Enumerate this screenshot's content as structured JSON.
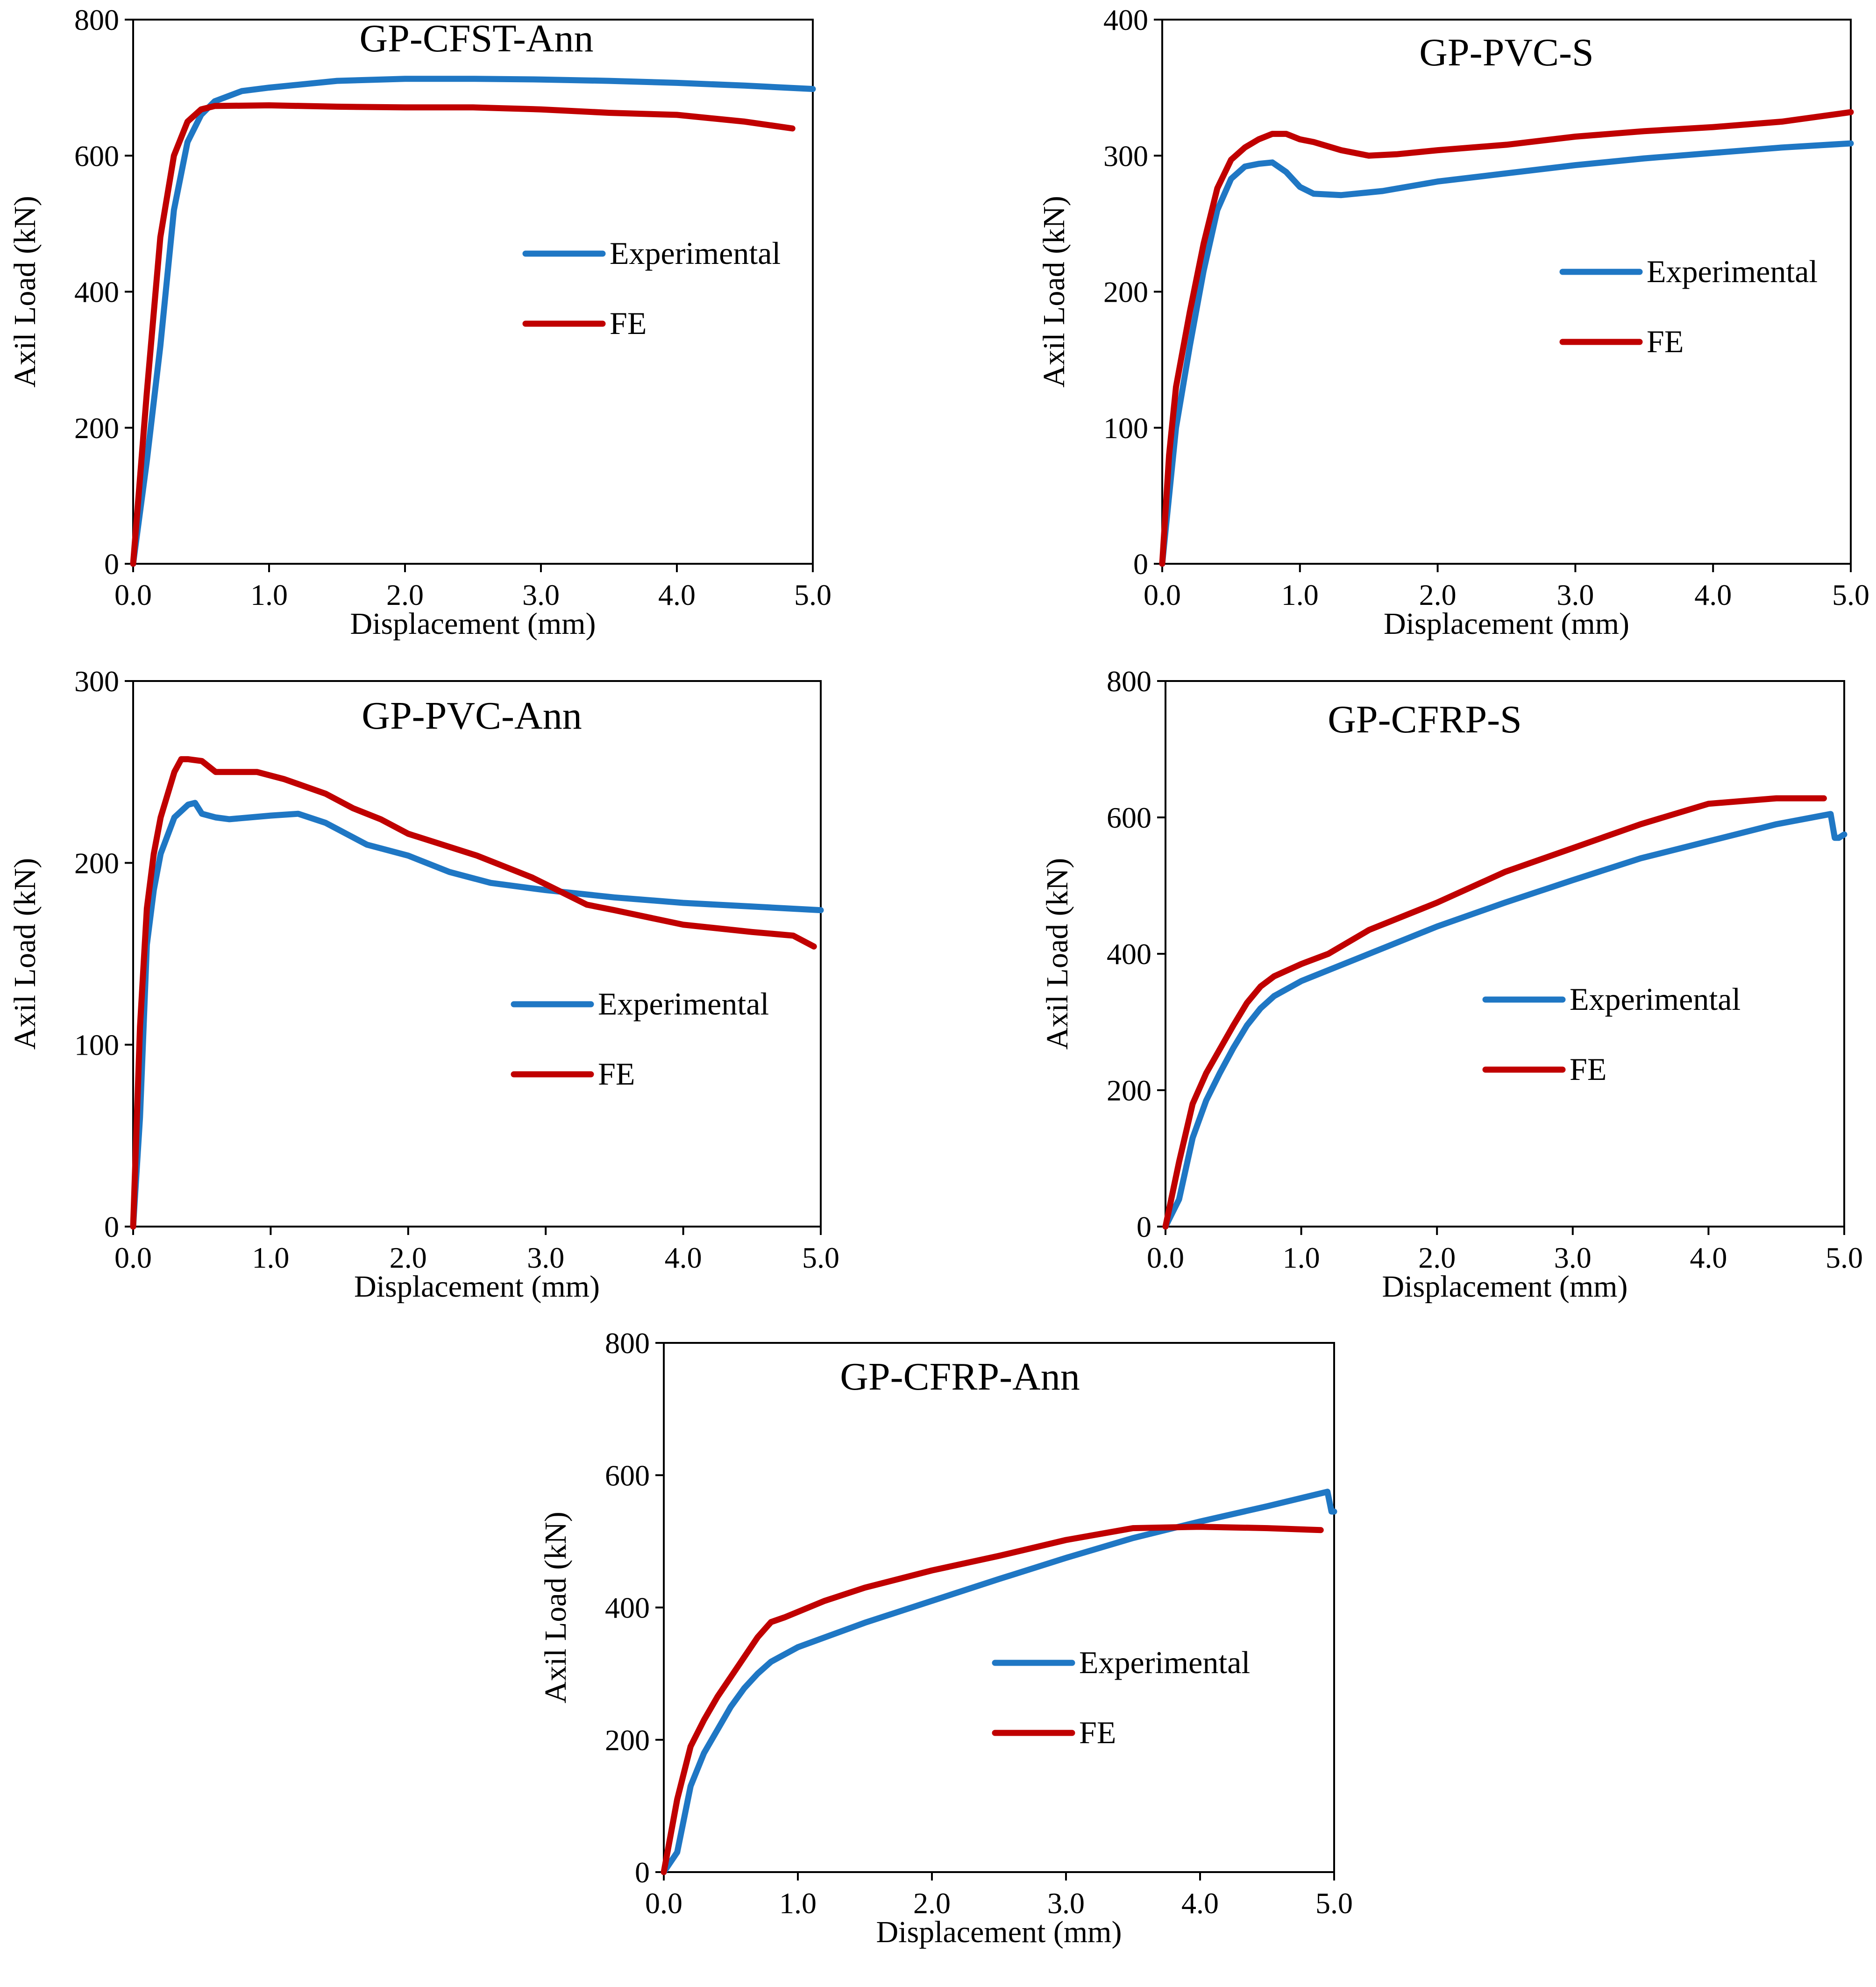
{
  "colors": {
    "experimental": "#1f77c4",
    "fe": "#c00000"
  },
  "chart_data": [
    {
      "type": "line",
      "title": "GP-CFST-Ann",
      "xlabel": "Displacement  (mm)",
      "ylabel": "Axil Load (kN)",
      "xlim": [
        0,
        5
      ],
      "ylim": [
        0,
        800
      ],
      "xticks": [
        0,
        1,
        2,
        3,
        4,
        5
      ],
      "xtick_labels": [
        "0.0",
        "1.0",
        "2.0",
        "3.0",
        "4.0",
        "5.0"
      ],
      "yticks": [
        0,
        200,
        400,
        600,
        800
      ],
      "ytick_labels": [
        "0",
        "200",
        "400",
        "600",
        "800"
      ],
      "legend": [
        "Experimental",
        "FE"
      ],
      "legend_position": "center-right",
      "series": [
        {
          "name": "Experimental",
          "color": "#1f77c4",
          "x": [
            0,
            0.1,
            0.2,
            0.3,
            0.4,
            0.5,
            0.6,
            0.8,
            1.0,
            1.5,
            2.0,
            2.5,
            3.0,
            3.5,
            4.0,
            4.5,
            5.0
          ],
          "y": [
            0,
            150,
            320,
            520,
            620,
            660,
            680,
            695,
            700,
            710,
            713,
            713,
            712,
            710,
            707,
            703,
            698
          ]
        },
        {
          "name": "FE",
          "color": "#c00000",
          "x": [
            0,
            0.1,
            0.2,
            0.3,
            0.4,
            0.5,
            0.6,
            1.0,
            1.5,
            2.0,
            2.5,
            3.0,
            3.5,
            4.0,
            4.5,
            4.85
          ],
          "y": [
            0,
            250,
            480,
            600,
            650,
            668,
            673,
            674,
            672,
            671,
            671,
            668,
            663,
            660,
            650,
            640
          ]
        }
      ]
    },
    {
      "type": "line",
      "title": "GP-PVC-S",
      "xlabel": "Displacement  (mm)",
      "ylabel": "Axil Load (kN)",
      "xlim": [
        0,
        5
      ],
      "ylim": [
        0,
        400
      ],
      "xticks": [
        0,
        1,
        2,
        3,
        4,
        5
      ],
      "xtick_labels": [
        "0.0",
        "1.0",
        "2.0",
        "3.0",
        "4.0",
        "5.0"
      ],
      "yticks": [
        0,
        100,
        200,
        300,
        400
      ],
      "ytick_labels": [
        "0",
        "100",
        "200",
        "300",
        "400"
      ],
      "legend": [
        "Experimental",
        "FE"
      ],
      "legend_position": "center-right",
      "series": [
        {
          "name": "Experimental",
          "color": "#1f77c4",
          "x": [
            0,
            0.1,
            0.2,
            0.3,
            0.4,
            0.5,
            0.6,
            0.7,
            0.8,
            0.9,
            1.0,
            1.1,
            1.3,
            1.6,
            2.0,
            2.5,
            3.0,
            3.5,
            4.0,
            4.5,
            5.0
          ],
          "y": [
            0,
            100,
            160,
            215,
            260,
            283,
            292,
            294,
            295,
            288,
            277,
            272,
            271,
            274,
            281,
            287,
            293,
            298,
            302,
            306,
            309
          ]
        },
        {
          "name": "FE",
          "color": "#c00000",
          "x": [
            0,
            0.05,
            0.1,
            0.2,
            0.3,
            0.4,
            0.5,
            0.6,
            0.7,
            0.8,
            0.9,
            1.0,
            1.1,
            1.3,
            1.5,
            1.7,
            2.0,
            2.5,
            3.0,
            3.5,
            4.0,
            4.5,
            5.0
          ],
          "y": [
            0,
            80,
            130,
            185,
            235,
            276,
            297,
            306,
            312,
            316,
            316,
            312,
            310,
            304,
            300,
            301,
            304,
            308,
            314,
            318,
            321,
            325,
            332
          ]
        }
      ]
    },
    {
      "type": "line",
      "title": "GP-PVC-Ann",
      "xlabel": "Displacement  (mm)",
      "ylabel": "Axil Load (kN)",
      "xlim": [
        0,
        5
      ],
      "ylim": [
        0,
        300
      ],
      "xticks": [
        0,
        1,
        2,
        3,
        4,
        5
      ],
      "xtick_labels": [
        "0.0",
        "1.0",
        "2.0",
        "3.0",
        "4.0",
        "5.0"
      ],
      "yticks": [
        0,
        100,
        200,
        300
      ],
      "ytick_labels": [
        "0",
        "100",
        "200",
        "300"
      ],
      "legend": [
        "Experimental",
        "FE"
      ],
      "legend_position": "center-right",
      "series": [
        {
          "name": "Experimental",
          "color": "#1f77c4",
          "x": [
            0,
            0.05,
            0.1,
            0.15,
            0.2,
            0.3,
            0.4,
            0.45,
            0.5,
            0.6,
            0.7,
            1.0,
            1.2,
            1.4,
            1.5,
            1.7,
            2.0,
            2.3,
            2.6,
            3.0,
            3.5,
            4.0,
            4.5,
            5.0
          ],
          "y": [
            0,
            60,
            155,
            185,
            205,
            225,
            232,
            233,
            227,
            225,
            224,
            226,
            227,
            222,
            218,
            210,
            204,
            195,
            189,
            185,
            181,
            178,
            176,
            174
          ]
        },
        {
          "name": "FE",
          "color": "#c00000",
          "x": [
            0,
            0.05,
            0.1,
            0.15,
            0.2,
            0.3,
            0.35,
            0.4,
            0.5,
            0.6,
            0.7,
            0.9,
            1.1,
            1.4,
            1.6,
            1.8,
            2.0,
            2.5,
            2.9,
            3.3,
            3.5,
            4.0,
            4.5,
            4.8,
            4.95
          ],
          "y": [
            0,
            110,
            175,
            205,
            225,
            250,
            257,
            257,
            256,
            250,
            250,
            250,
            246,
            238,
            230,
            224,
            216,
            204,
            192,
            177,
            174,
            166,
            162,
            160,
            154
          ]
        }
      ]
    },
    {
      "type": "line",
      "title": "GP-CFRP-S",
      "xlabel": "Displacement  (mm)",
      "ylabel": "Axil Load (kN)",
      "xlim": [
        0,
        5
      ],
      "ylim": [
        0,
        800
      ],
      "xticks": [
        0,
        1,
        2,
        3,
        4,
        5
      ],
      "xtick_labels": [
        "0.0",
        "1.0",
        "2.0",
        "3.0",
        "4.0",
        "5.0"
      ],
      "yticks": [
        0,
        200,
        400,
        600,
        800
      ],
      "ytick_labels": [
        "0",
        "200",
        "400",
        "600",
        "800"
      ],
      "legend": [
        "Experimental",
        "FE"
      ],
      "legend_position": "center-right",
      "series": [
        {
          "name": "Experimental",
          "color": "#1f77c4",
          "x": [
            0,
            0.1,
            0.2,
            0.3,
            0.4,
            0.5,
            0.6,
            0.7,
            0.8,
            1.0,
            1.5,
            2.0,
            2.5,
            3.0,
            3.5,
            4.0,
            4.5,
            4.9,
            4.93,
            4.96,
            5.0
          ],
          "y": [
            0,
            40,
            130,
            185,
            225,
            262,
            295,
            320,
            338,
            360,
            400,
            440,
            475,
            508,
            540,
            565,
            590,
            605,
            570,
            570,
            575
          ]
        },
        {
          "name": "FE",
          "color": "#c00000",
          "x": [
            0,
            0.1,
            0.2,
            0.3,
            0.4,
            0.5,
            0.6,
            0.7,
            0.8,
            1.0,
            1.2,
            1.5,
            2.0,
            2.5,
            3.0,
            3.5,
            4.0,
            4.5,
            4.85
          ],
          "y": [
            0,
            95,
            180,
            225,
            260,
            295,
            328,
            352,
            367,
            385,
            400,
            435,
            475,
            520,
            555,
            590,
            620,
            628,
            628
          ]
        }
      ]
    },
    {
      "type": "line",
      "title": "GP-CFRP-Ann",
      "xlabel": "Displacement  (mm)",
      "ylabel": "Axil Load (kN)",
      "xlim": [
        0,
        5
      ],
      "ylim": [
        0,
        800
      ],
      "xticks": [
        0,
        1,
        2,
        3,
        4,
        5
      ],
      "xtick_labels": [
        "0.0",
        "1.0",
        "2.0",
        "3.0",
        "4.0",
        "5.0"
      ],
      "yticks": [
        0,
        200,
        400,
        600,
        800
      ],
      "ytick_labels": [
        "0",
        "200",
        "400",
        "600",
        "800"
      ],
      "legend": [
        "Experimental",
        "FE"
      ],
      "legend_position": "center-right",
      "series": [
        {
          "name": "Experimental",
          "color": "#1f77c4",
          "x": [
            0,
            0.1,
            0.2,
            0.3,
            0.4,
            0.5,
            0.6,
            0.7,
            0.8,
            1.0,
            1.5,
            2.0,
            2.5,
            3.0,
            3.5,
            4.0,
            4.5,
            4.95,
            4.98,
            5.0
          ],
          "y": [
            0,
            30,
            130,
            180,
            215,
            250,
            278,
            300,
            318,
            340,
            377,
            410,
            443,
            475,
            505,
            530,
            553,
            575,
            545,
            545
          ]
        },
        {
          "name": "FE",
          "color": "#c00000",
          "x": [
            0,
            0.1,
            0.2,
            0.3,
            0.4,
            0.5,
            0.6,
            0.7,
            0.8,
            0.9,
            1.2,
            1.5,
            2.0,
            2.5,
            3.0,
            3.5,
            4.0,
            4.5,
            4.9
          ],
          "y": [
            0,
            110,
            190,
            230,
            265,
            295,
            325,
            355,
            378,
            385,
            410,
            430,
            456,
            478,
            502,
            520,
            522,
            520,
            517
          ]
        }
      ]
    }
  ]
}
